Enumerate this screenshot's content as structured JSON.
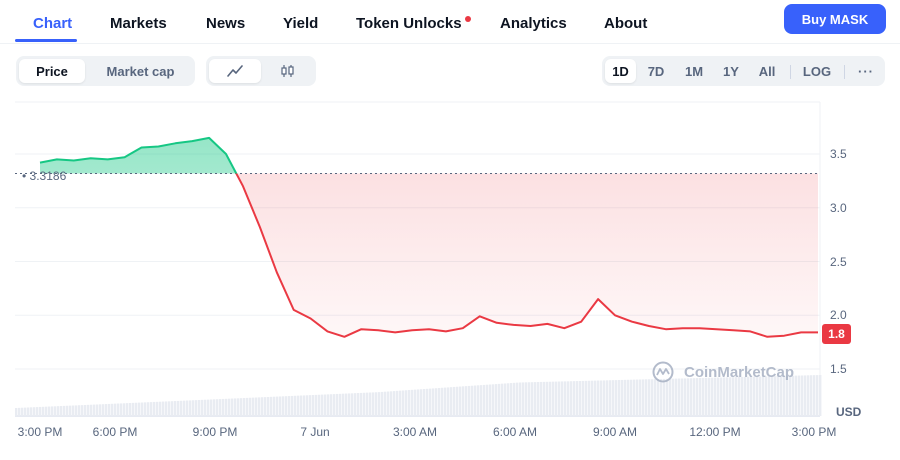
{
  "nav": {
    "tabs": [
      {
        "label": "Chart",
        "active": true
      },
      {
        "label": "Markets",
        "active": false
      },
      {
        "label": "News",
        "active": false
      },
      {
        "label": "Yield",
        "active": false
      },
      {
        "label": "Token Unlocks",
        "active": false,
        "has_dot": true
      },
      {
        "label": "Analytics",
        "active": false
      },
      {
        "label": "About",
        "active": false
      }
    ],
    "buy_label": "Buy MASK"
  },
  "toolbar": {
    "metric_tabs": [
      {
        "label": "Price",
        "active": true
      },
      {
        "label": "Market cap",
        "active": false
      }
    ],
    "chart_types": [
      {
        "icon": "line-chart-icon",
        "active": true
      },
      {
        "icon": "candlestick-icon",
        "active": false
      }
    ],
    "ranges": [
      {
        "label": "1D",
        "active": true
      },
      {
        "label": "7D",
        "active": false
      },
      {
        "label": "1M",
        "active": false
      },
      {
        "label": "1Y",
        "active": false
      },
      {
        "label": "All",
        "active": false
      },
      {
        "label": "LOG",
        "active": false
      }
    ],
    "more_label": "···"
  },
  "chart": {
    "reference_label": "3.3186",
    "current_price_label": "1.8",
    "currency": "USD",
    "watermark": "CoinMarketCap",
    "colors": {
      "up": "#16c784",
      "down": "#ea3943",
      "accent": "#3861fb"
    }
  },
  "chart_data": {
    "type": "line",
    "x": [
      "3:00 PM",
      "3:30 PM",
      "4:00 PM",
      "4:30 PM",
      "5:00 PM",
      "5:30 PM",
      "6:00 PM",
      "6:30 PM",
      "7:00 PM",
      "7:30 PM",
      "8:00 PM",
      "8:10 PM",
      "8:20 PM",
      "8:30 PM",
      "8:45 PM",
      "9:00 PM",
      "9:30 PM",
      "10:00 PM",
      "10:30 PM",
      "11:00 PM",
      "11:30 PM",
      "12:00 AM",
      "12:30 AM",
      "1:00 AM",
      "1:30 AM",
      "2:00 AM",
      "2:30 AM",
      "3:00 AM",
      "3:30 AM",
      "4:00 AM",
      "4:30 AM",
      "5:00 AM",
      "5:30 AM",
      "6:00 AM",
      "6:30 AM",
      "7:00 AM",
      "7:30 AM",
      "8:00 AM",
      "9:00 AM",
      "10:00 AM",
      "11:00 AM",
      "12:00 PM",
      "1:00 PM",
      "1:30 PM",
      "2:00 PM",
      "2:30 PM",
      "3:00 PM"
    ],
    "series": [
      {
        "values": [
          3.42,
          3.45,
          3.44,
          3.46,
          3.45,
          3.47,
          3.56,
          3.57,
          3.6,
          3.62,
          3.65,
          3.5,
          3.2,
          2.82,
          2.4,
          2.05,
          1.97,
          1.85,
          1.8,
          1.87,
          1.86,
          1.84,
          1.86,
          1.87,
          1.85,
          1.88,
          1.99,
          1.93,
          1.91,
          1.9,
          1.92,
          1.88,
          1.94,
          2.15,
          2.0,
          1.94,
          1.9,
          1.87,
          1.88,
          1.88,
          1.87,
          1.86,
          1.85,
          1.8,
          1.81,
          1.84,
          1.84
        ]
      }
    ],
    "reference_value": 3.3186,
    "current_value": 1.8,
    "yticks": [
      1.5,
      2.0,
      2.5,
      3.0,
      3.5
    ],
    "xticks": [
      "3:00 PM",
      "6:00 PM",
      "9:00 PM",
      "7 Jun",
      "3:00 AM",
      "6:00 AM",
      "9:00 AM",
      "12:00 PM",
      "3:00 PM"
    ],
    "ylim": [
      1.5,
      3.8
    ],
    "grid": true,
    "volume_shown": true
  }
}
